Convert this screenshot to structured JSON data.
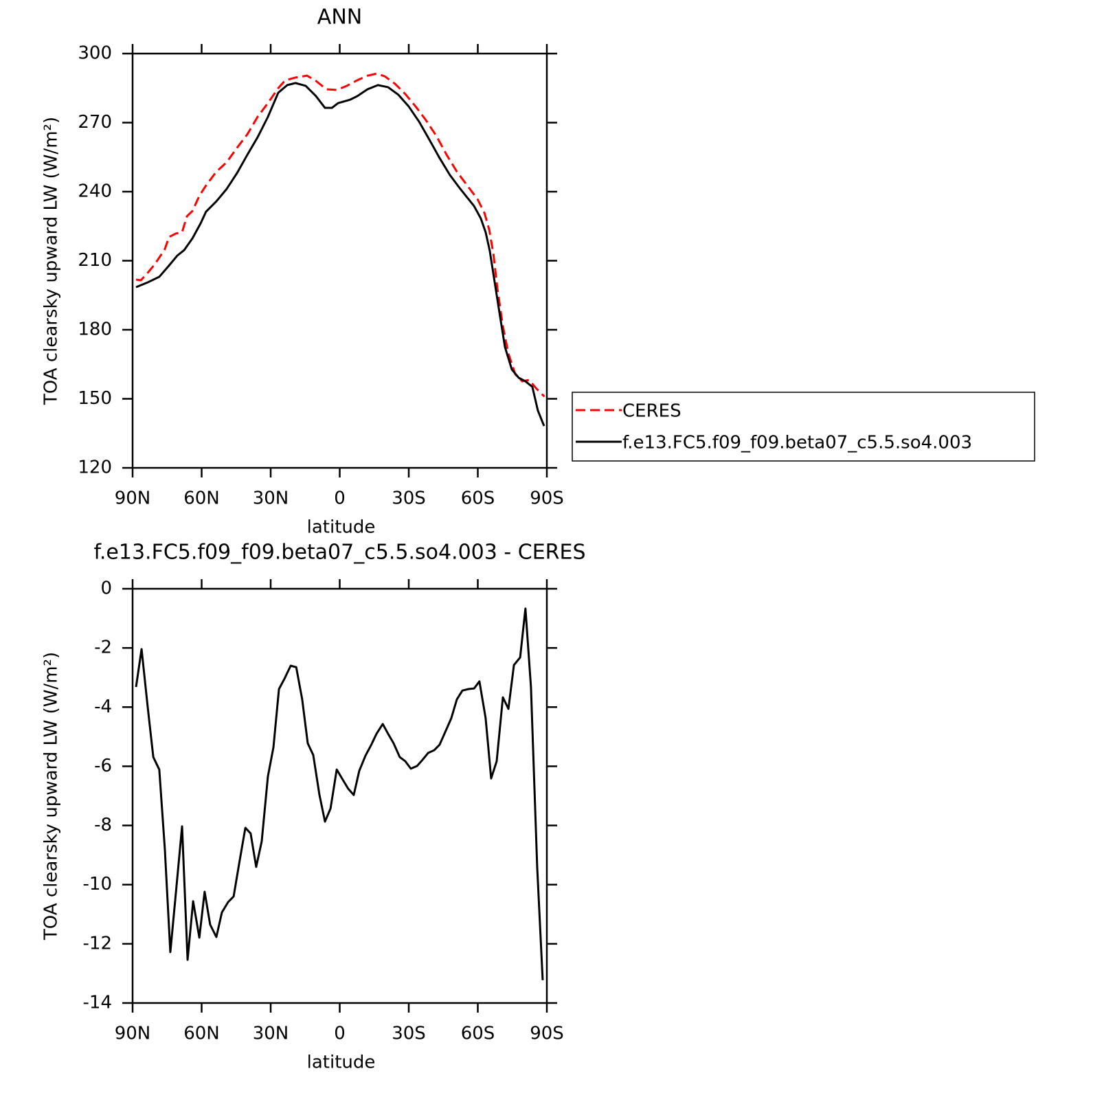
{
  "chart_data": [
    {
      "type": "line",
      "title": "ANN",
      "xlabel": "latitude",
      "ylabel": "TOA clearsky upward LW (W/m²)",
      "xlim": [
        90,
        -90
      ],
      "xticks": [
        {
          "value": 90,
          "label": "90N"
        },
        {
          "value": 60,
          "label": "60N"
        },
        {
          "value": 30,
          "label": "30N"
        },
        0,
        {
          "value": -30,
          "label": "30S"
        },
        {
          "value": -60,
          "label": "60S"
        },
        {
          "value": -90,
          "label": "90S"
        }
      ],
      "ylim": [
        120,
        300
      ],
      "yticks": [
        120,
        150,
        180,
        210,
        240,
        270,
        300
      ],
      "legend": "right",
      "series": [
        {
          "name": "CERES",
          "color": "#ff0000",
          "linestyle": "dashed",
          "x": [
            88.5,
            86.4,
            83.4,
            80.4,
            76.0,
            74.2,
            71.2,
            68.5,
            66.4,
            64.0,
            61.0,
            58.1,
            53.6,
            49.1,
            44.6,
            40.1,
            35.7,
            31.2,
            26.7,
            23.7,
            19.2,
            14.2,
            10.3,
            5.8,
            1.3,
            -3.1,
            -7.6,
            -12.1,
            -16.0,
            -19.6,
            -24.0,
            -28.5,
            -33.0,
            -37.5,
            -42.0,
            -46.4,
            -50.9,
            -55.4,
            -59.9,
            -62.9,
            -65.0,
            -66.8,
            -68.5,
            -70.9,
            -73.3,
            -76.3,
            -79.3,
            -82.3,
            -85.3,
            -88.9
          ],
          "values": [
            201.8,
            201.5,
            204.8,
            208.4,
            215.0,
            220.3,
            221.8,
            222.4,
            229.3,
            231.6,
            238.2,
            242.7,
            248.7,
            252.8,
            259.1,
            265.0,
            272.5,
            278.5,
            285.0,
            288.4,
            289.6,
            290.4,
            288.1,
            284.5,
            284.2,
            286.0,
            288.4,
            290.4,
            291.3,
            290.1,
            286.9,
            282.4,
            277.0,
            271.0,
            264.2,
            256.1,
            248.7,
            242.7,
            236.7,
            230.7,
            223.3,
            212.8,
            197.9,
            181.5,
            169.6,
            160.6,
            157.6,
            158.2,
            154.6,
            151.0
          ]
        },
        {
          "name": "f.e13.FC5.f09_f09.beta07_c5.5.so4.003",
          "color": "#000000",
          "linestyle": "solid",
          "x": [
            88.5,
            83.4,
            78.4,
            74.5,
            70.6,
            67.6,
            64.0,
            60.4,
            58.1,
            53.6,
            49.1,
            44.6,
            40.1,
            35.7,
            31.2,
            26.7,
            22.8,
            19.2,
            14.8,
            10.3,
            6.4,
            3.4,
            0.7,
            -4.6,
            -7.6,
            -12.1,
            -16.6,
            -21.0,
            -25.5,
            -30.0,
            -34.5,
            -38.9,
            -43.4,
            -47.9,
            -52.4,
            -58.4,
            -61.3,
            -63.4,
            -65.2,
            -67.3,
            -69.4,
            -71.8,
            -74.8,
            -77.8,
            -80.7,
            -83.7,
            -86.1,
            -88.8
          ],
          "values": [
            198.5,
            200.6,
            203.0,
            207.5,
            212.2,
            214.6,
            219.7,
            226.3,
            231.3,
            235.8,
            241.2,
            248.1,
            256.1,
            263.6,
            272.5,
            283.0,
            286.3,
            287.2,
            286.0,
            281.5,
            276.4,
            276.4,
            278.5,
            280.0,
            281.5,
            284.5,
            286.3,
            285.4,
            282.1,
            277.0,
            270.4,
            262.7,
            254.6,
            247.2,
            241.2,
            233.7,
            228.4,
            222.4,
            214.3,
            200.9,
            187.5,
            172.5,
            162.7,
            159.1,
            157.6,
            155.2,
            144.9,
            138.2
          ]
        }
      ]
    },
    {
      "type": "line",
      "title": "f.e13.FC5.f09_f09.beta07_c5.5.so4.003 - CERES",
      "xlabel": "latitude",
      "ylabel": "TOA clearsky upward LW (W/m²)",
      "xlim": [
        90,
        -90
      ],
      "xticks": [
        {
          "value": 90,
          "label": "90N"
        },
        {
          "value": 60,
          "label": "60N"
        },
        {
          "value": 30,
          "label": "30N"
        },
        0,
        {
          "value": -30,
          "label": "30S"
        },
        {
          "value": -60,
          "label": "60S"
        },
        {
          "value": -90,
          "label": "90S"
        }
      ],
      "ylim": [
        -14,
        0
      ],
      "yticks": [
        -14,
        -12,
        -10,
        -8,
        -6,
        -4,
        -2,
        0
      ],
      "color": "#000000",
      "x": [
        88.5,
        86.1,
        83.4,
        81.0,
        78.4,
        76.0,
        73.6,
        71.2,
        68.5,
        66.1,
        63.7,
        61.0,
        58.7,
        56.3,
        53.6,
        51.2,
        48.5,
        46.1,
        43.7,
        41.0,
        38.7,
        36.3,
        33.9,
        31.2,
        28.8,
        26.4,
        24.0,
        21.3,
        18.9,
        16.3,
        13.9,
        11.5,
        8.8,
        6.4,
        4.0,
        1.3,
        -1.0,
        -3.7,
        -6.1,
        -8.5,
        -11.2,
        -13.6,
        -16.0,
        -18.7,
        -21.0,
        -23.4,
        -26.1,
        -28.5,
        -30.9,
        -33.6,
        -36.0,
        -38.4,
        -41.0,
        -43.4,
        -45.8,
        -48.5,
        -50.9,
        -53.3,
        -56.0,
        -58.4,
        -60.7,
        -63.4,
        -65.8,
        -68.2,
        -70.9,
        -73.3,
        -75.7,
        -78.4,
        -80.7,
        -83.1,
        -85.8,
        -88.2
      ],
      "values": [
        -3.32,
        -2.04,
        -4.02,
        -5.69,
        -6.11,
        -8.78,
        -12.28,
        -10.29,
        -8.03,
        -12.54,
        -10.56,
        -11.79,
        -10.24,
        -11.35,
        -11.77,
        -10.94,
        -10.59,
        -10.4,
        -9.29,
        -8.08,
        -8.27,
        -9.4,
        -8.54,
        -6.34,
        -5.36,
        -3.39,
        -3.04,
        -2.6,
        -2.65,
        -3.74,
        -5.22,
        -5.62,
        -6.97,
        -7.87,
        -7.43,
        -6.11,
        -6.41,
        -6.76,
        -6.97,
        -6.15,
        -5.64,
        -5.29,
        -4.9,
        -4.57,
        -4.9,
        -5.22,
        -5.69,
        -5.83,
        -6.08,
        -5.99,
        -5.78,
        -5.55,
        -5.46,
        -5.27,
        -4.85,
        -4.37,
        -3.74,
        -3.44,
        -3.39,
        -3.37,
        -3.13,
        -4.37,
        -6.41,
        -5.83,
        -3.67,
        -4.06,
        -2.58,
        -2.32,
        -0.67,
        -3.32,
        -9.4,
        -13.23
      ]
    }
  ]
}
